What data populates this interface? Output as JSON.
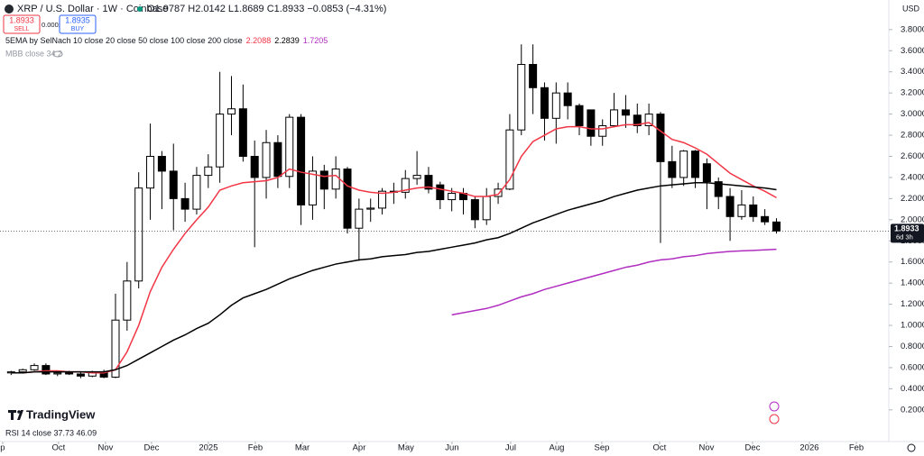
{
  "chart_data": {
    "type": "candlestick",
    "title": "XRP / U.S. Dollar · 1W · Coinbase",
    "ohlc_text": "O1.9787 H2.0142 L1.8689 C1.8933 −0.0853 (−4.31%)",
    "sell_price": "1.8933",
    "sell_label": "SELL",
    "spread": "0.0002",
    "buy_price": "1.8935",
    "buy_label": "BUY",
    "indicator": "5EMA by SelNach 10 close 20 close 50 close 100 close 200 close",
    "indicator2": "MBB close 34 2",
    "currency": "USD",
    "countdown": "6d 3h",
    "rsi": "RSI 14 close 37.73 46.09",
    "logo": "TradingView",
    "up_color": "#ffffff",
    "down_color": "#000000",
    "border_color": "#000000",
    "open": [
      0.55,
      0.56,
      0.58,
      0.62,
      0.54,
      0.55,
      0.54,
      0.52,
      0.56,
      0.51,
      1.05,
      1.42,
      2.3,
      2.6,
      2.46,
      2.2,
      2.1,
      2.42,
      2.5,
      3.0,
      3.05,
      2.6,
      2.4,
      2.73,
      2.41,
      2.97,
      2.14,
      2.46,
      2.29,
      2.48,
      1.92,
      2.1,
      2.11,
      2.27,
      2.26,
      2.39,
      2.42,
      2.33,
      2.19,
      2.25,
      2.19,
      2.0,
      2.22,
      2.29,
      2.85,
      3.47,
      3.25,
      2.96,
      3.2,
      3.08,
      3.04,
      2.79,
      2.89,
      3.04,
      2.99,
      2.89,
      3.0,
      2.55,
      2.4,
      2.65,
      2.53,
      2.36,
      2.22,
      2.03,
      2.14,
      2.03,
      1.9787
    ],
    "high": [
      0.57,
      0.59,
      0.64,
      0.64,
      0.56,
      0.57,
      0.56,
      0.57,
      0.58,
      1.3,
      1.6,
      2.45,
      2.91,
      2.65,
      2.72,
      2.35,
      2.5,
      2.62,
      3.4,
      3.36,
      3.28,
      2.75,
      2.85,
      2.8,
      3.0,
      3.0,
      2.6,
      2.52,
      2.6,
      2.5,
      2.2,
      2.2,
      2.3,
      2.35,
      2.47,
      2.65,
      2.5,
      2.36,
      2.3,
      2.3,
      2.22,
      2.3,
      2.35,
      3.0,
      3.66,
      3.66,
      3.3,
      3.3,
      3.3,
      3.1,
      3.04,
      2.95,
      3.2,
      3.18,
      3.1,
      3.1,
      3.02,
      2.7,
      2.66,
      2.66,
      2.58,
      2.4,
      2.3,
      2.28,
      2.22,
      2.1,
      2.0142
    ],
    "low": [
      0.53,
      0.55,
      0.57,
      0.53,
      0.52,
      0.53,
      0.5,
      0.51,
      0.5,
      0.5,
      0.95,
      1.35,
      2.0,
      2.1,
      1.9,
      1.98,
      2.05,
      2.3,
      2.35,
      2.8,
      2.55,
      1.74,
      2.2,
      2.3,
      2.3,
      1.95,
      2.0,
      2.1,
      2.2,
      1.87,
      1.61,
      1.98,
      2.05,
      2.15,
      2.2,
      2.33,
      2.25,
      2.1,
      2.08,
      2.05,
      1.92,
      1.95,
      2.15,
      2.28,
      2.8,
      3.0,
      2.75,
      2.72,
      2.95,
      2.8,
      2.7,
      2.7,
      2.88,
      2.87,
      2.82,
      2.8,
      1.78,
      2.3,
      2.32,
      2.3,
      2.1,
      2.1,
      1.8,
      2.0,
      1.98,
      1.95,
      1.8689
    ],
    "close": [
      0.56,
      0.58,
      0.62,
      0.54,
      0.55,
      0.54,
      0.52,
      0.56,
      0.51,
      1.05,
      1.42,
      2.3,
      2.6,
      2.46,
      2.2,
      2.1,
      2.42,
      2.5,
      3.0,
      3.05,
      2.6,
      2.4,
      2.73,
      2.41,
      2.97,
      2.14,
      2.46,
      2.29,
      2.48,
      1.92,
      2.1,
      2.11,
      2.27,
      2.26,
      2.39,
      2.42,
      2.29,
      2.19,
      2.25,
      2.19,
      2.0,
      2.22,
      2.29,
      2.85,
      3.47,
      3.25,
      2.96,
      3.2,
      3.08,
      2.89,
      2.79,
      2.89,
      3.04,
      2.99,
      2.89,
      3.0,
      2.55,
      2.4,
      2.65,
      2.4,
      2.36,
      2.22,
      2.03,
      2.14,
      2.03,
      1.98,
      1.8933
    ],
    "series": [
      {
        "color": "#f23645",
        "values": [
          0.55,
          0.55,
          0.56,
          0.57,
          0.57,
          0.56,
          0.56,
          0.55,
          0.55,
          0.58,
          0.75,
          1.0,
          1.32,
          1.55,
          1.72,
          1.87,
          2.0,
          2.12,
          2.28,
          2.32,
          2.35,
          2.36,
          2.37,
          2.4,
          2.48,
          2.45,
          2.43,
          2.41,
          2.42,
          2.32,
          2.28,
          2.26,
          2.25,
          2.26,
          2.28,
          2.3,
          2.31,
          2.29,
          2.27,
          2.25,
          2.22,
          2.22,
          2.24,
          2.38,
          2.6,
          2.74,
          2.8,
          2.86,
          2.88,
          2.88,
          2.86,
          2.86,
          2.88,
          2.9,
          2.9,
          2.92,
          2.84,
          2.76,
          2.73,
          2.68,
          2.62,
          2.53,
          2.44,
          2.38,
          2.32,
          2.27,
          2.2088
        ]
      },
      {
        "color": "#000000",
        "values": [
          0.55,
          0.55,
          0.56,
          0.56,
          0.56,
          0.56,
          0.56,
          0.56,
          0.56,
          0.58,
          0.62,
          0.68,
          0.74,
          0.8,
          0.86,
          0.91,
          0.97,
          1.02,
          1.1,
          1.19,
          1.26,
          1.3,
          1.34,
          1.39,
          1.44,
          1.48,
          1.52,
          1.55,
          1.58,
          1.6,
          1.62,
          1.63,
          1.65,
          1.66,
          1.67,
          1.69,
          1.7,
          1.72,
          1.74,
          1.76,
          1.78,
          1.81,
          1.83,
          1.87,
          1.92,
          1.97,
          2.01,
          2.05,
          2.09,
          2.12,
          2.15,
          2.18,
          2.22,
          2.25,
          2.28,
          2.3,
          2.32,
          2.33,
          2.34,
          2.35,
          2.35,
          2.34,
          2.33,
          2.32,
          2.31,
          2.3,
          2.2839
        ]
      },
      {
        "color": "#b02ec0",
        "values": [
          null,
          null,
          null,
          null,
          null,
          null,
          null,
          null,
          null,
          null,
          null,
          null,
          null,
          null,
          null,
          null,
          null,
          null,
          null,
          null,
          null,
          null,
          null,
          null,
          null,
          null,
          null,
          null,
          null,
          null,
          null,
          null,
          null,
          null,
          null,
          null,
          null,
          null,
          1.1,
          1.12,
          1.14,
          1.16,
          1.19,
          1.23,
          1.27,
          1.3,
          1.34,
          1.37,
          1.4,
          1.43,
          1.46,
          1.49,
          1.52,
          1.55,
          1.57,
          1.6,
          1.62,
          1.63,
          1.65,
          1.66,
          1.68,
          1.69,
          1.7,
          1.705,
          1.71,
          1.715,
          1.7205
        ]
      }
    ],
    "xlim": [
      -0.96,
      75.69
    ],
    "xticks": [
      {
        "value": -0.73,
        "label": "p"
      },
      {
        "value": 4.09,
        "label": "Oct"
      },
      {
        "value": 8.14,
        "label": "Nov"
      },
      {
        "value": 12.11,
        "label": "Dec"
      },
      {
        "value": 17.01,
        "label": "2025"
      },
      {
        "value": 21.06,
        "label": "Feb"
      },
      {
        "value": 25.11,
        "label": "Mar"
      },
      {
        "value": 30.01,
        "label": "Apr"
      },
      {
        "value": 34.05,
        "label": "May"
      },
      {
        "value": 38.02,
        "label": "Jun"
      },
      {
        "value": 43.08,
        "label": "Jul"
      },
      {
        "value": 47.05,
        "label": "Aug"
      },
      {
        "value": 50.94,
        "label": "Sep"
      },
      {
        "value": 55.92,
        "label": "Oct"
      },
      {
        "value": 59.97,
        "label": "Nov"
      },
      {
        "value": 63.94,
        "label": "Dec"
      },
      {
        "value": 68.84,
        "label": "2026"
      },
      {
        "value": 72.89,
        "label": "Feb"
      }
    ],
    "ylim": [
      -0.1,
      4.08
    ],
    "yticks": [
      {
        "value": 0.2,
        "label": "0.2000"
      },
      {
        "value": 0.4,
        "label": "0.4000"
      },
      {
        "value": 0.6,
        "label": "0.6000"
      },
      {
        "value": 0.8,
        "label": "0.8000"
      },
      {
        "value": 1.0,
        "label": "1.0000"
      },
      {
        "value": 1.2,
        "label": "1.2000"
      },
      {
        "value": 1.4,
        "label": "1.4000"
      },
      {
        "value": 1.6,
        "label": "1.6000"
      },
      {
        "value": 1.8,
        "label": "1.8000"
      },
      {
        "value": 2.0,
        "label": "2.0000"
      },
      {
        "value": 2.2,
        "label": "2.2000"
      },
      {
        "value": 2.4,
        "label": "2.4000"
      },
      {
        "value": 2.6,
        "label": "2.6000"
      },
      {
        "value": 2.8,
        "label": "2.8000"
      },
      {
        "value": 3.0,
        "label": "3.0000"
      },
      {
        "value": 3.2,
        "label": "3.2000"
      },
      {
        "value": 3.4,
        "label": "3.4000"
      },
      {
        "value": 3.6,
        "label": "3.6000"
      },
      {
        "value": 3.8,
        "label": "3.8000"
      }
    ],
    "grid": false
  }
}
